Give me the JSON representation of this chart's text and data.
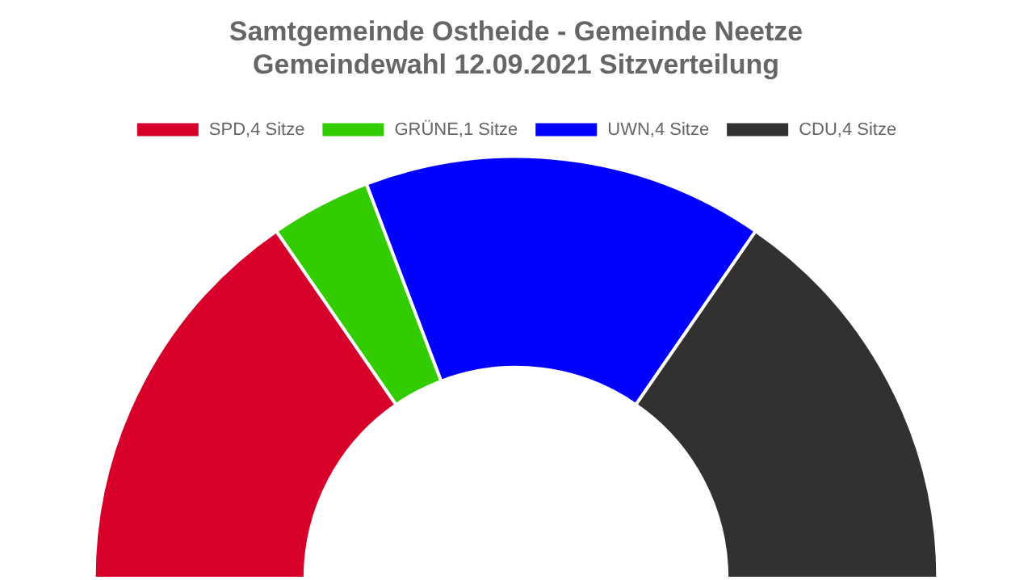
{
  "chart_data": {
    "type": "donut",
    "title": [
      "Samtgemeinde Ostheide - Gemeinde Neetze",
      "Gemeindewahl 12.09.2021 Sitzverteilung"
    ],
    "categories": [
      "SPD,4 Sitze",
      "GRÜNE,1 Sitze",
      "UWN,4 Sitze",
      "CDU,4 Sitze"
    ],
    "values": [
      4,
      1,
      4,
      4
    ],
    "colors": [
      "#d7002b",
      "#33cc00",
      "#0000ff",
      "#333130"
    ],
    "legend": "top"
  }
}
